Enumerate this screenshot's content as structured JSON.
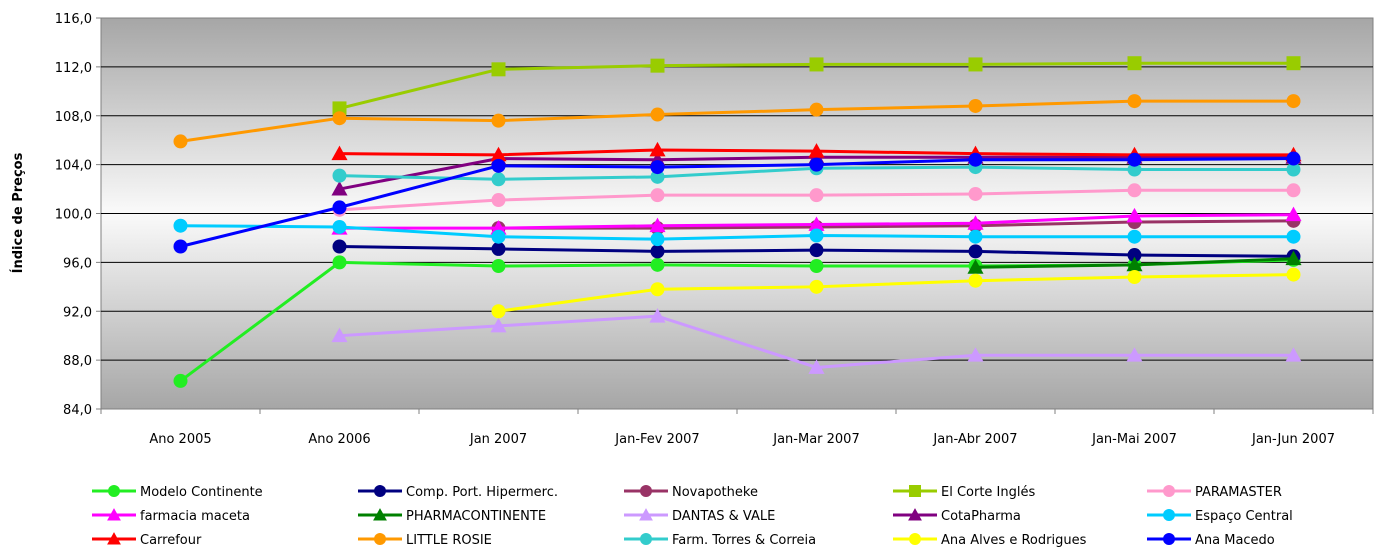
{
  "chart_data": {
    "type": "line",
    "title": "",
    "xlabel": "",
    "ylabel": "Índice de Preços",
    "ylim": [
      84,
      116
    ],
    "yticks": [
      "84,0",
      "88,0",
      "92,0",
      "96,0",
      "100,0",
      "104,0",
      "108,0",
      "112,0",
      "116,0"
    ],
    "ytick_values": [
      84,
      88,
      92,
      96,
      100,
      104,
      108,
      112,
      116
    ],
    "categories": [
      "Ano 2005",
      "Ano 2006",
      "Jan 2007",
      "Jan-Fev 2007",
      "Jan-Mar 2007",
      "Jan-Abr 2007",
      "Jan-Mai 2007",
      "Jan-Jun 2007"
    ],
    "grid": true,
    "legend_position": "bottom",
    "series": [
      {
        "name": "Modelo Continente",
        "color": "#22EE22",
        "marker": "circle",
        "values": [
          86.3,
          96.0,
          95.7,
          95.8,
          95.7,
          95.7,
          95.8,
          96.2
        ]
      },
      {
        "name": "Comp. Port. Hipermerc.",
        "color": "#000080",
        "marker": "circle",
        "values": [
          null,
          97.3,
          97.1,
          96.9,
          97.0,
          96.9,
          96.6,
          96.5
        ]
      },
      {
        "name": "Novapotheke",
        "color": "#993366",
        "marker": "circle",
        "values": [
          null,
          null,
          98.8,
          98.8,
          98.9,
          99.0,
          99.3,
          99.4
        ]
      },
      {
        "name": "El Corte Inglés",
        "color": "#99CC00",
        "marker": "square",
        "values": [
          null,
          108.6,
          111.8,
          112.1,
          112.2,
          112.2,
          112.3,
          112.3
        ]
      },
      {
        "name": "PARAMASTER",
        "color": "#FF99CC",
        "marker": "circle",
        "values": [
          null,
          100.3,
          101.1,
          101.5,
          101.5,
          101.6,
          101.9,
          101.9
        ]
      },
      {
        "name": "farmacia maceta",
        "color": "#FF00FF",
        "marker": "triangle",
        "values": [
          null,
          98.8,
          98.8,
          99.0,
          99.1,
          99.2,
          99.8,
          99.9
        ]
      },
      {
        "name": "PHARMACONTINENTE",
        "color": "#008000",
        "marker": "triangle",
        "values": [
          null,
          null,
          null,
          null,
          null,
          95.6,
          95.8,
          96.3
        ]
      },
      {
        "name": "DANTAS & VALE",
        "color": "#CC99FF",
        "marker": "triangle",
        "values": [
          null,
          90.0,
          90.8,
          91.6,
          87.4,
          88.4,
          88.4,
          88.4
        ]
      },
      {
        "name": "CotaPharma",
        "color": "#800080",
        "marker": "triangle",
        "values": [
          null,
          102.0,
          104.5,
          104.4,
          104.6,
          104.6,
          104.6,
          104.6
        ]
      },
      {
        "name": "Espaço Central",
        "color": "#00CCFF",
        "marker": "circle",
        "values": [
          99.0,
          98.9,
          98.1,
          97.9,
          98.2,
          98.1,
          98.1,
          98.1
        ]
      },
      {
        "name": "Carrefour",
        "color": "#FF0000",
        "marker": "triangle",
        "values": [
          null,
          104.9,
          104.8,
          105.2,
          105.1,
          104.9,
          104.8,
          104.8
        ]
      },
      {
        "name": "LITTLE ROSIE",
        "color": "#FF9900",
        "marker": "circle",
        "values": [
          105.9,
          107.8,
          107.6,
          108.1,
          108.5,
          108.8,
          109.2,
          109.2
        ]
      },
      {
        "name": "Farm. Torres & Correia",
        "color": "#33CCCC",
        "marker": "circle",
        "values": [
          null,
          103.1,
          102.8,
          103.0,
          103.7,
          103.8,
          103.6,
          103.6
        ]
      },
      {
        "name": "Ana Alves e Rodrigues",
        "color": "#FFFF00",
        "marker": "circle",
        "values": [
          null,
          null,
          92.0,
          93.8,
          94.0,
          94.5,
          94.8,
          95.0
        ]
      },
      {
        "name": "Ana Macedo",
        "color": "#0000FF",
        "marker": "circle",
        "values": [
          97.3,
          100.5,
          103.9,
          103.8,
          104.0,
          104.4,
          104.4,
          104.5
        ]
      }
    ]
  }
}
